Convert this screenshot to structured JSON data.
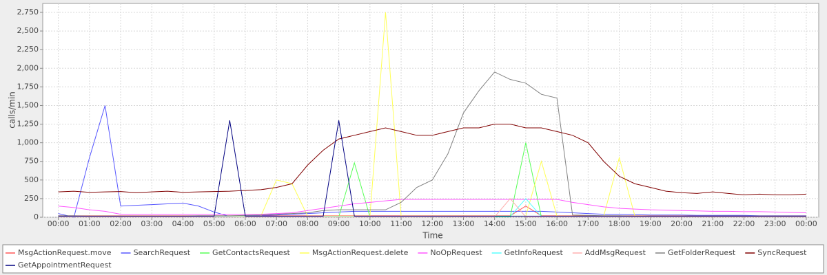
{
  "chart_data": {
    "type": "line",
    "x_label": "Time",
    "y_label": "calls/min",
    "x": [
      0,
      0.5,
      1,
      1.5,
      2,
      2.5,
      3,
      3.5,
      4,
      4.5,
      5,
      5.5,
      6,
      6.5,
      7,
      7.5,
      8,
      8.5,
      9,
      9.5,
      10,
      10.5,
      11,
      11.5,
      12,
      12.5,
      13,
      13.5,
      14,
      14.5,
      15,
      15.5,
      16,
      16.5,
      17,
      17.5,
      18,
      18.5,
      19,
      19.5,
      20,
      20.5,
      21,
      21.5,
      22,
      22.5,
      23,
      23.5,
      24
    ],
    "xlim": [
      -0.5,
      24.4
    ],
    "xticks": [
      {
        "value": 0,
        "label": "00:00"
      },
      {
        "value": 1,
        "label": "01:00"
      },
      {
        "value": 2,
        "label": "02:00"
      },
      {
        "value": 3,
        "label": "03:00"
      },
      {
        "value": 4,
        "label": "04:00"
      },
      {
        "value": 5,
        "label": "05:00"
      },
      {
        "value": 6,
        "label": "06:00"
      },
      {
        "value": 7,
        "label": "07:00"
      },
      {
        "value": 8,
        "label": "08:00"
      },
      {
        "value": 9,
        "label": "09:00"
      },
      {
        "value": 10,
        "label": "10:00"
      },
      {
        "value": 11,
        "label": "11:00"
      },
      {
        "value": 12,
        "label": "12:00"
      },
      {
        "value": 13,
        "label": "13:00"
      },
      {
        "value": 14,
        "label": "14:00"
      },
      {
        "value": 15,
        "label": "15:00"
      },
      {
        "value": 16,
        "label": "16:00"
      },
      {
        "value": 17,
        "label": "17:00"
      },
      {
        "value": 18,
        "label": "18:00"
      },
      {
        "value": 19,
        "label": "19:00"
      },
      {
        "value": 20,
        "label": "20:00"
      },
      {
        "value": 21,
        "label": "21:00"
      },
      {
        "value": 22,
        "label": "22:00"
      },
      {
        "value": 23,
        "label": "23:00"
      },
      {
        "value": 24,
        "label": "00:00"
      }
    ],
    "ylim": [
      0,
      2870
    ],
    "yticks": [
      0,
      250,
      500,
      750,
      {
        "value": 1000,
        "label": "1,000"
      },
      {
        "value": 1250,
        "label": "1,250"
      },
      {
        "value": 1500,
        "label": "1,500"
      },
      {
        "value": 1750,
        "label": "1,750"
      },
      {
        "value": 2000,
        "label": "2,000"
      },
      {
        "value": 2250,
        "label": "2,250"
      },
      {
        "value": 2500,
        "label": "2,500"
      },
      {
        "value": 2750,
        "label": "2,750"
      }
    ],
    "grid": true,
    "legend": "bottom",
    "series": [
      {
        "name": "MsgActionRequest.move",
        "color": "#ff5555",
        "values": [
          20,
          20,
          20,
          20,
          20,
          20,
          20,
          20,
          20,
          20,
          20,
          20,
          20,
          20,
          20,
          20,
          20,
          20,
          20,
          20,
          20,
          20,
          20,
          20,
          20,
          20,
          20,
          20,
          20,
          20,
          150,
          20,
          20,
          20,
          20,
          20,
          20,
          20,
          20,
          20,
          20,
          20,
          20,
          20,
          20,
          20,
          20,
          20,
          20
        ]
      },
      {
        "name": "SearchRequest",
        "color": "#5555ff",
        "values": [
          50,
          0,
          800,
          1500,
          150,
          160,
          170,
          180,
          190,
          150,
          70,
          10,
          20,
          25,
          30,
          40,
          50,
          60,
          70,
          80,
          80,
          80,
          80,
          80,
          80,
          80,
          80,
          80,
          80,
          80,
          80,
          80,
          70,
          60,
          50,
          40,
          40,
          35,
          30,
          30,
          30,
          25,
          25,
          25,
          25,
          20,
          20,
          20,
          20
        ]
      },
      {
        "name": "GetContactsRequest",
        "color": "#55ff55",
        "values": [
          5,
          5,
          5,
          5,
          5,
          5,
          5,
          5,
          5,
          5,
          5,
          5,
          5,
          5,
          5,
          5,
          5,
          5,
          5,
          730,
          5,
          5,
          5,
          5,
          5,
          5,
          5,
          5,
          5,
          5,
          1000,
          5,
          5,
          5,
          5,
          5,
          5,
          5,
          5,
          5,
          5,
          5,
          5,
          5,
          5,
          5,
          5,
          5,
          5
        ]
      },
      {
        "name": "MsgActionRequest.delete",
        "color": "#ffff55",
        "values": [
          15,
          15,
          15,
          15,
          15,
          15,
          15,
          15,
          15,
          15,
          15,
          15,
          15,
          15,
          500,
          450,
          15,
          15,
          15,
          15,
          15,
          2750,
          15,
          15,
          15,
          15,
          15,
          15,
          15,
          15,
          15,
          750,
          15,
          15,
          15,
          15,
          800,
          15,
          15,
          15,
          15,
          15,
          15,
          15,
          15,
          15,
          15,
          15,
          15
        ]
      },
      {
        "name": "NoOpRequest",
        "color": "#ff55ff",
        "values": [
          150,
          130,
          100,
          80,
          40,
          40,
          40,
          40,
          40,
          40,
          40,
          40,
          40,
          40,
          50,
          60,
          90,
          120,
          150,
          180,
          200,
          220,
          240,
          240,
          240,
          240,
          240,
          240,
          240,
          240,
          240,
          240,
          240,
          200,
          170,
          140,
          120,
          110,
          100,
          95,
          90,
          85,
          80,
          80,
          75,
          75,
          70,
          65,
          60
        ]
      },
      {
        "name": "GetInfoRequest",
        "color": "#55ffff",
        "values": [
          10,
          10,
          10,
          10,
          10,
          10,
          10,
          10,
          10,
          10,
          10,
          10,
          10,
          10,
          10,
          10,
          10,
          10,
          10,
          10,
          10,
          10,
          10,
          10,
          10,
          10,
          10,
          10,
          10,
          10,
          250,
          10,
          10,
          10,
          10,
          10,
          10,
          10,
          10,
          10,
          10,
          10,
          10,
          10,
          10,
          10,
          10,
          10,
          10
        ]
      },
      {
        "name": "AddMsgRequest",
        "color": "#ffafaf",
        "values": [
          5,
          5,
          5,
          5,
          5,
          5,
          5,
          5,
          5,
          5,
          5,
          5,
          5,
          5,
          5,
          5,
          5,
          5,
          5,
          5,
          5,
          5,
          5,
          5,
          5,
          5,
          5,
          5,
          5,
          250,
          5,
          5,
          5,
          5,
          5,
          5,
          5,
          5,
          5,
          5,
          5,
          5,
          5,
          5,
          5,
          5,
          5,
          5,
          5
        ]
      },
      {
        "name": "GetFolderRequest",
        "color": "#808080",
        "values": [
          20,
          20,
          15,
          15,
          15,
          15,
          15,
          15,
          15,
          20,
          20,
          20,
          25,
          30,
          40,
          50,
          60,
          90,
          100,
          100,
          100,
          100,
          200,
          400,
          500,
          850,
          1400,
          1700,
          1950,
          1850,
          1800,
          1650,
          1600,
          30,
          25,
          20,
          20,
          15,
          15,
          15,
          15,
          15,
          15,
          15,
          15,
          15,
          15,
          15,
          15
        ]
      },
      {
        "name": "SyncRequest",
        "color": "#800000",
        "values": [
          340,
          350,
          335,
          340,
          345,
          330,
          340,
          350,
          335,
          340,
          345,
          350,
          360,
          370,
          400,
          450,
          700,
          900,
          1050,
          1100,
          1150,
          1200,
          1150,
          1100,
          1100,
          1150,
          1200,
          1200,
          1250,
          1250,
          1200,
          1200,
          1150,
          1100,
          1000,
          750,
          550,
          450,
          400,
          350,
          330,
          320,
          340,
          320,
          300,
          310,
          300,
          300,
          310
        ]
      },
      {
        "name": "GetAppointmentRequest",
        "color": "#000080",
        "values": [
          15,
          15,
          15,
          15,
          15,
          15,
          15,
          15,
          15,
          15,
          15,
          1300,
          15,
          15,
          15,
          15,
          15,
          15,
          1300,
          15,
          15,
          15,
          15,
          15,
          15,
          15,
          15,
          15,
          15,
          15,
          15,
          15,
          15,
          15,
          15,
          15,
          15,
          15,
          15,
          15,
          15,
          15,
          15,
          15,
          15,
          15,
          15,
          15,
          15
        ]
      }
    ]
  }
}
